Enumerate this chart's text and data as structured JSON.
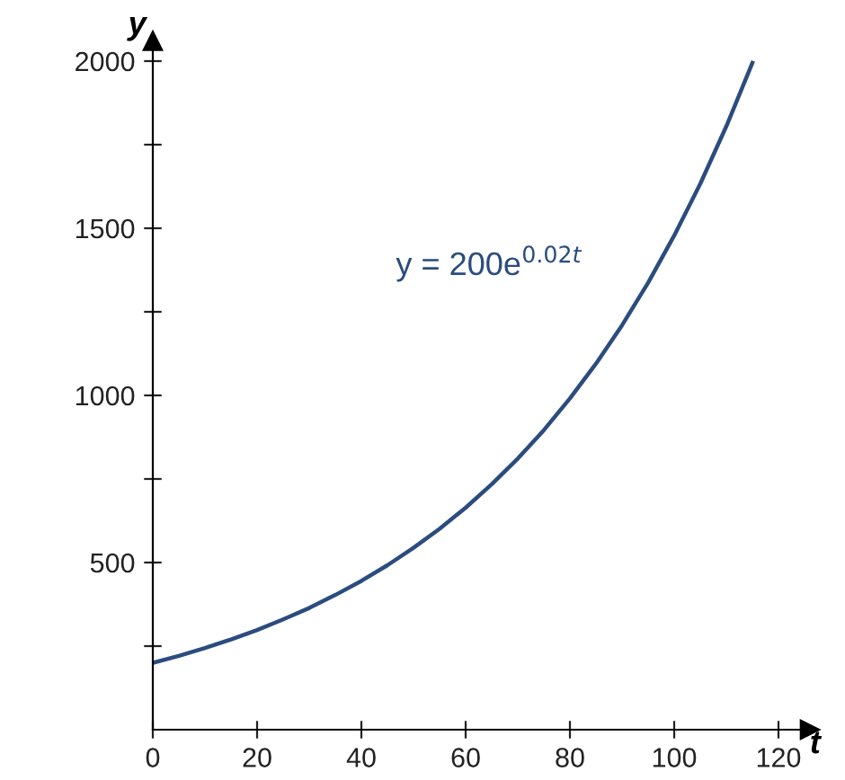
{
  "chart_data": {
    "type": "line",
    "xlabel": "t",
    "ylabel": "y",
    "annotations": [
      "y = 200e$^{0.02t}$"
    ],
    "x": [
      0,
      5,
      10,
      15,
      20,
      25,
      30,
      35,
      40,
      45,
      50,
      55,
      60,
      65,
      70,
      75,
      80,
      85,
      90,
      95,
      100,
      105,
      110,
      115
    ],
    "series": [
      {
        "color": "#2b4c7e",
        "values": [
          200,
          221,
          244,
          270,
          298,
          330,
          364,
          403,
          445,
          492,
          544,
          601,
          664,
          734,
          811,
          896,
          991,
          1095,
          1210,
          1337,
          1478,
          1633,
          1805,
          1995
        ]
      }
    ],
    "xlim": [
      0,
      126
    ],
    "ylim": [
      0,
      2060
    ],
    "xticks": [
      0,
      20,
      40,
      60,
      80,
      100,
      120
    ],
    "yticks": [
      {
        "value": 250,
        "label": null
      },
      500,
      {
        "value": 750,
        "label": null
      },
      1000,
      {
        "value": 1250,
        "label": null
      },
      1500,
      {
        "value": 1750,
        "label": null
      },
      2000
    ],
    "grid": false,
    "legend": false,
    "marker": "none",
    "line_style": "solid"
  }
}
